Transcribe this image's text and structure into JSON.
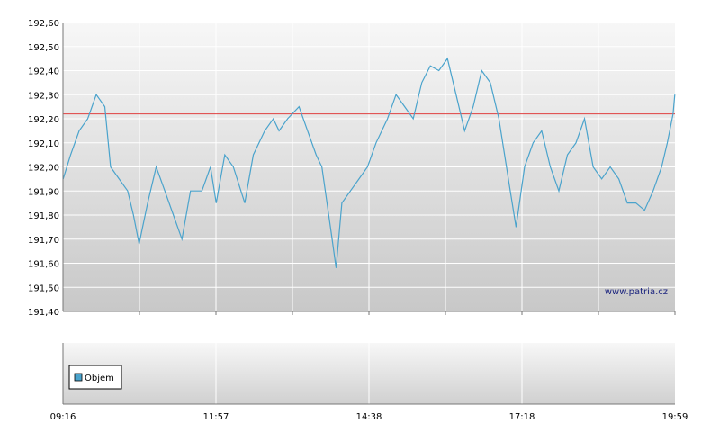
{
  "chart_data": [
    {
      "type": "line",
      "title": "",
      "xlabel": "",
      "ylabel": "",
      "ylim": [
        191.4,
        192.6
      ],
      "y_ticks": [
        "192,60",
        "192,50",
        "192,40",
        "192,30",
        "192,20",
        "192,10",
        "192,00",
        "191,90",
        "191,80",
        "191,70",
        "191,60",
        "191,50",
        "191,40"
      ],
      "grid": true,
      "reference_line": {
        "value": 192.22,
        "color": "#e04040"
      },
      "series_color": "#4aa3cc",
      "series": [
        {
          "name": "",
          "points": [
            [
              9.27,
              191.95
            ],
            [
              9.4,
              192.05
            ],
            [
              9.55,
              192.15
            ],
            [
              9.7,
              192.2
            ],
            [
              9.85,
              192.3
            ],
            [
              10.0,
              192.25
            ],
            [
              10.1,
              192.0
            ],
            [
              10.25,
              191.95
            ],
            [
              10.4,
              191.9
            ],
            [
              10.5,
              191.8
            ],
            [
              10.6,
              191.68
            ],
            [
              10.75,
              191.85
            ],
            [
              10.9,
              192.0
            ],
            [
              11.05,
              191.9
            ],
            [
              11.2,
              191.8
            ],
            [
              11.35,
              191.7
            ],
            [
              11.5,
              191.9
            ],
            [
              11.7,
              191.9
            ],
            [
              11.85,
              192.0
            ],
            [
              11.95,
              191.85
            ],
            [
              12.1,
              192.05
            ],
            [
              12.25,
              192.0
            ],
            [
              12.45,
              191.85
            ],
            [
              12.6,
              192.05
            ],
            [
              12.8,
              192.15
            ],
            [
              12.95,
              192.2
            ],
            [
              13.05,
              192.15
            ],
            [
              13.2,
              192.2
            ],
            [
              13.4,
              192.25
            ],
            [
              13.55,
              192.15
            ],
            [
              13.7,
              192.05
            ],
            [
              13.8,
              192.0
            ],
            [
              13.95,
              191.75
            ],
            [
              14.05,
              191.58
            ],
            [
              14.15,
              191.85
            ],
            [
              14.3,
              191.9
            ],
            [
              14.45,
              191.95
            ],
            [
              14.6,
              192.0
            ],
            [
              14.75,
              192.1
            ],
            [
              14.95,
              192.2
            ],
            [
              15.1,
              192.3
            ],
            [
              15.25,
              192.25
            ],
            [
              15.4,
              192.2
            ],
            [
              15.55,
              192.35
            ],
            [
              15.7,
              192.42
            ],
            [
              15.85,
              192.4
            ],
            [
              16.0,
              192.45
            ],
            [
              16.15,
              192.3
            ],
            [
              16.3,
              192.15
            ],
            [
              16.45,
              192.25
            ],
            [
              16.6,
              192.4
            ],
            [
              16.75,
              192.35
            ],
            [
              16.9,
              192.2
            ],
            [
              17.0,
              192.05
            ],
            [
              17.1,
              191.9
            ],
            [
              17.2,
              191.75
            ],
            [
              17.35,
              192.0
            ],
            [
              17.5,
              192.1
            ],
            [
              17.65,
              192.15
            ],
            [
              17.8,
              192.0
            ],
            [
              17.95,
              191.9
            ],
            [
              18.1,
              192.05
            ],
            [
              18.25,
              192.1
            ],
            [
              18.4,
              192.2
            ],
            [
              18.55,
              192.0
            ],
            [
              18.7,
              191.95
            ],
            [
              18.85,
              192.0
            ],
            [
              19.0,
              191.95
            ],
            [
              19.15,
              191.85
            ],
            [
              19.3,
              191.85
            ],
            [
              19.45,
              191.82
            ],
            [
              19.6,
              191.9
            ],
            [
              19.75,
              192.0
            ],
            [
              19.85,
              192.1
            ],
            [
              19.95,
              192.22
            ],
            [
              19.98,
              192.3
            ]
          ]
        }
      ]
    },
    {
      "type": "bar",
      "title": "",
      "legend": [
        "Objem"
      ],
      "legend_placement": "left",
      "legend_color": "#4aa3cc",
      "values": []
    }
  ],
  "x_axis": {
    "labels": [
      "09:16",
      "11:57",
      "14:38",
      "17:18",
      "19:59"
    ]
  },
  "watermark": "www.patria.cz"
}
